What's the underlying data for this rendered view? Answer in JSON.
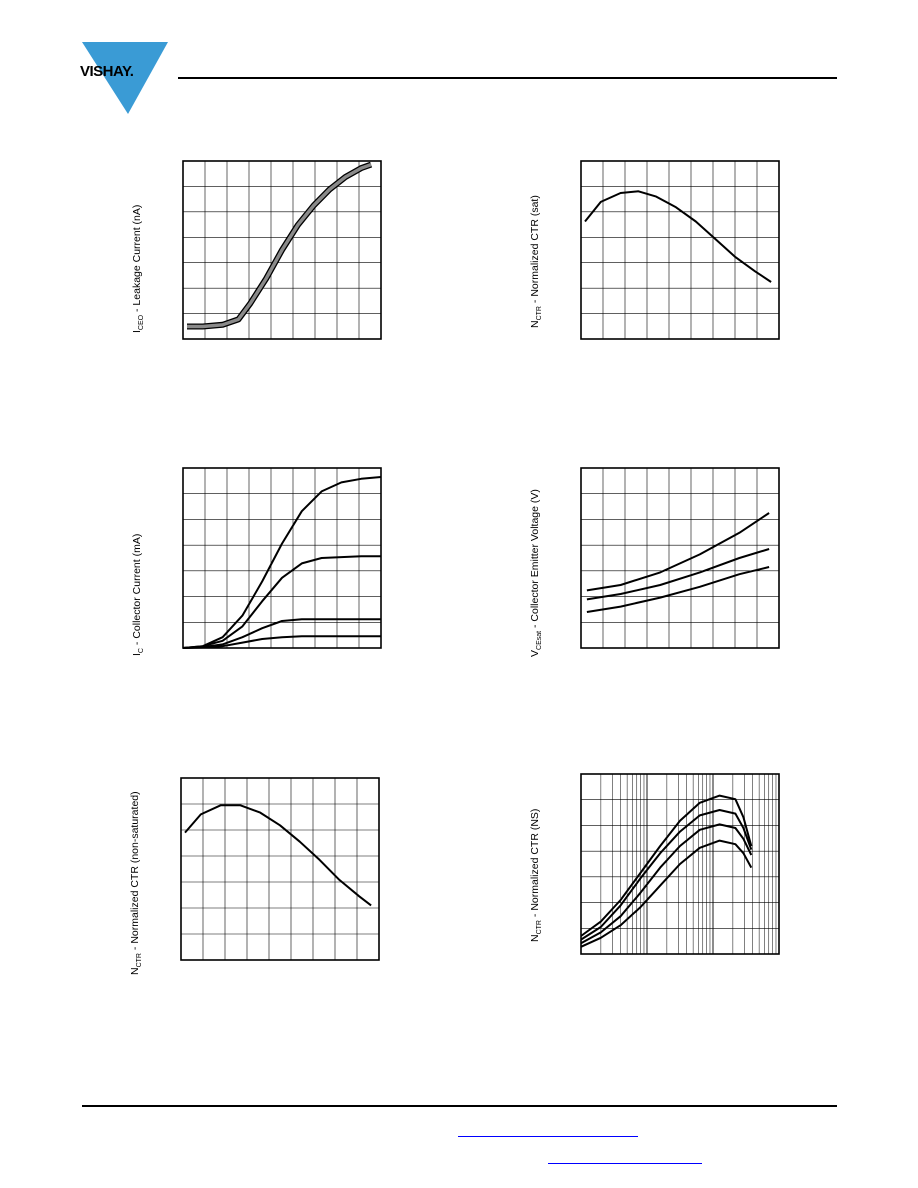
{
  "header": {
    "logo_text": "VISHAY."
  },
  "chart_data": [
    {
      "type": "line",
      "id": "leakage",
      "ylabel_main": "I",
      "ylabel_sub": "CEO",
      "ylabel_rest": " - Leakage Current (nA)",
      "xlim": [
        0,
        1
      ],
      "ylim": [
        0,
        1
      ],
      "grid": true,
      "series": [
        {
          "x": [
            0.02,
            0.1,
            0.2,
            0.28,
            0.34,
            0.42,
            0.5,
            0.58,
            0.66,
            0.74,
            0.82,
            0.9,
            0.95
          ],
          "y": [
            0.07,
            0.07,
            0.08,
            0.11,
            0.2,
            0.34,
            0.5,
            0.64,
            0.75,
            0.84,
            0.91,
            0.96,
            0.98
          ]
        }
      ]
    },
    {
      "type": "line",
      "id": "ctr-sat",
      "ylabel_main": "N",
      "ylabel_sub": "CTR",
      "ylabel_rest": " - Normalized CTR (sat)",
      "xlim": [
        0,
        1
      ],
      "ylim": [
        0,
        1
      ],
      "grid": true,
      "series": [
        {
          "x": [
            0.02,
            0.1,
            0.2,
            0.29,
            0.38,
            0.48,
            0.58,
            0.68,
            0.78,
            0.88,
            0.96
          ],
          "y": [
            0.66,
            0.77,
            0.82,
            0.83,
            0.8,
            0.74,
            0.66,
            0.56,
            0.46,
            0.38,
            0.32
          ]
        }
      ]
    },
    {
      "type": "line",
      "id": "collector-current",
      "ylabel_main": "I",
      "ylabel_sub": "C",
      "ylabel_rest": " - Collector Current (mA)",
      "xlim": [
        0,
        1
      ],
      "ylim": [
        0,
        1
      ],
      "grid": true,
      "series": [
        {
          "x": [
            0,
            0.1,
            0.2,
            0.3,
            0.4,
            0.5,
            0.6,
            0.7,
            0.8,
            0.9,
            1.0
          ],
          "y": [
            0,
            0.01,
            0.06,
            0.18,
            0.37,
            0.58,
            0.76,
            0.87,
            0.92,
            0.94,
            0.95
          ]
        },
        {
          "x": [
            0,
            0.1,
            0.2,
            0.3,
            0.4,
            0.5,
            0.6,
            0.7,
            0.8,
            0.9,
            1.0
          ],
          "y": [
            0,
            0.01,
            0.04,
            0.12,
            0.26,
            0.39,
            0.47,
            0.5,
            0.505,
            0.51,
            0.51
          ]
        },
        {
          "x": [
            0,
            0.1,
            0.2,
            0.3,
            0.4,
            0.5,
            0.6,
            0.7,
            0.8,
            0.9,
            1.0
          ],
          "y": [
            0,
            0.005,
            0.02,
            0.06,
            0.11,
            0.15,
            0.16,
            0.16,
            0.16,
            0.16,
            0.16
          ]
        },
        {
          "x": [
            0,
            0.1,
            0.2,
            0.3,
            0.4,
            0.5,
            0.6,
            0.7,
            0.8,
            0.9,
            1.0
          ],
          "y": [
            0,
            0.003,
            0.01,
            0.03,
            0.05,
            0.06,
            0.065,
            0.065,
            0.065,
            0.065,
            0.065
          ]
        }
      ]
    },
    {
      "type": "line",
      "id": "vcesat",
      "ylabel_main": "V",
      "ylabel_sub": "CEsat",
      "ylabel_rest": " - Collector Emitter Voltage (V)",
      "xlim": [
        0,
        1
      ],
      "ylim": [
        0,
        1
      ],
      "grid": true,
      "series": [
        {
          "x": [
            0.03,
            0.2,
            0.4,
            0.6,
            0.8,
            0.95
          ],
          "y": [
            0.32,
            0.35,
            0.42,
            0.52,
            0.64,
            0.75
          ]
        },
        {
          "x": [
            0.03,
            0.2,
            0.4,
            0.6,
            0.8,
            0.95
          ],
          "y": [
            0.27,
            0.3,
            0.35,
            0.42,
            0.5,
            0.55
          ]
        },
        {
          "x": [
            0.03,
            0.2,
            0.4,
            0.6,
            0.8,
            0.95
          ],
          "y": [
            0.2,
            0.23,
            0.28,
            0.34,
            0.41,
            0.45
          ]
        }
      ]
    },
    {
      "type": "line",
      "id": "ctr-nonsat",
      "ylabel_main": "N",
      "ylabel_sub": "CTR",
      "ylabel_rest": " - Normalized CTR (non-saturated)",
      "xlim": [
        0,
        1
      ],
      "ylim": [
        0,
        1
      ],
      "grid": true,
      "series": [
        {
          "x": [
            0.02,
            0.1,
            0.2,
            0.3,
            0.4,
            0.5,
            0.6,
            0.7,
            0.8,
            0.9,
            0.96
          ],
          "y": [
            0.7,
            0.8,
            0.85,
            0.85,
            0.81,
            0.74,
            0.65,
            0.55,
            0.44,
            0.35,
            0.3
          ]
        }
      ]
    },
    {
      "type": "line",
      "id": "ctr-ns",
      "ylabel_main": "N",
      "ylabel_sub": "CTR",
      "ylabel_rest": " - Normalized CTR (NS)",
      "xlim": [
        0,
        1
      ],
      "ylim": [
        0,
        1
      ],
      "grid": true,
      "xscale": "log",
      "series": [
        {
          "x": [
            0,
            0.1,
            0.2,
            0.3,
            0.4,
            0.5,
            0.6,
            0.7,
            0.78,
            0.82,
            0.86
          ],
          "y": [
            0.1,
            0.18,
            0.3,
            0.45,
            0.6,
            0.74,
            0.84,
            0.88,
            0.86,
            0.76,
            0.6
          ]
        },
        {
          "x": [
            0,
            0.1,
            0.2,
            0.3,
            0.4,
            0.5,
            0.6,
            0.7,
            0.78,
            0.82,
            0.86
          ],
          "y": [
            0.08,
            0.15,
            0.27,
            0.42,
            0.56,
            0.68,
            0.77,
            0.8,
            0.78,
            0.7,
            0.58
          ]
        },
        {
          "x": [
            0,
            0.1,
            0.2,
            0.3,
            0.4,
            0.5,
            0.6,
            0.7,
            0.78,
            0.82,
            0.86
          ],
          "y": [
            0.06,
            0.12,
            0.21,
            0.34,
            0.48,
            0.6,
            0.69,
            0.72,
            0.7,
            0.64,
            0.55
          ]
        },
        {
          "x": [
            0,
            0.1,
            0.2,
            0.3,
            0.4,
            0.5,
            0.6,
            0.7,
            0.78,
            0.82,
            0.86
          ],
          "y": [
            0.04,
            0.09,
            0.16,
            0.26,
            0.38,
            0.5,
            0.59,
            0.63,
            0.61,
            0.56,
            0.48
          ]
        }
      ]
    }
  ]
}
